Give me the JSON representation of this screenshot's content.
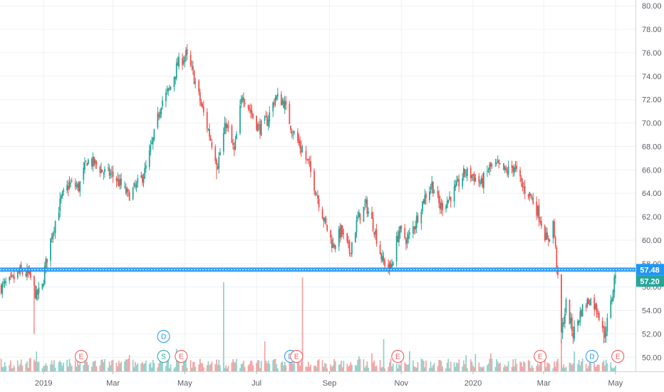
{
  "chart_data": {
    "type": "candlestick",
    "symbol_scale": "linear",
    "grid": true,
    "colors": {
      "up": "#26a69a",
      "down": "#ef5350",
      "volume_up": "#93d3cc",
      "volume_down": "#f3a6a5",
      "horizontal_line": "#2196f3",
      "last_price_label": "#26a69a",
      "line_price_label": "#2196f3",
      "grid": "#eef0f3"
    },
    "y_axis": {
      "min": 48.8,
      "max": 80.5,
      "tick_labels": [
        "50.00",
        "52.00",
        "54.00",
        "56.00",
        "58.00",
        "60.00",
        "62.00",
        "64.00",
        "66.00",
        "68.00",
        "70.00",
        "72.00",
        "74.00",
        "76.00",
        "78.00",
        "80.00"
      ]
    },
    "x_axis": {
      "start": "2018-11-25",
      "end": "2020-05-18",
      "tick_labels": [
        {
          "label": "2019",
          "date": "2019-01-01"
        },
        {
          "label": "Mar",
          "date": "2019-03-01"
        },
        {
          "label": "May",
          "date": "2019-05-01"
        },
        {
          "label": "Jul",
          "date": "2019-07-01"
        },
        {
          "label": "Sep",
          "date": "2019-09-01"
        },
        {
          "label": "Nov",
          "date": "2019-11-01"
        },
        {
          "label": "2020",
          "date": "2020-01-01"
        },
        {
          "label": "Mar",
          "date": "2020-03-01"
        },
        {
          "label": "May",
          "date": "2020-05-01"
        }
      ]
    },
    "price_path": [
      [
        "2018-11-26",
        56.0
      ],
      [
        "2018-12-05",
        56.5
      ],
      [
        "2018-12-12",
        57.3
      ],
      [
        "2018-12-20",
        57.0
      ],
      [
        "2018-12-26",
        55.2
      ],
      [
        "2018-12-31",
        56.0
      ],
      [
        "2019-01-02",
        57.5
      ],
      [
        "2019-01-08",
        60.5
      ],
      [
        "2019-01-16",
        63.5
      ],
      [
        "2019-01-23",
        64.8
      ],
      [
        "2019-01-31",
        64.5
      ],
      [
        "2019-02-07",
        66.8
      ],
      [
        "2019-02-14",
        66.5
      ],
      [
        "2019-02-21",
        65.8
      ],
      [
        "2019-02-28",
        65.6
      ],
      [
        "2019-03-07",
        64.8
      ],
      [
        "2019-03-14",
        63.8
      ],
      [
        "2019-03-21",
        64.6
      ],
      [
        "2019-03-28",
        65.8
      ],
      [
        "2019-04-04",
        68.5
      ],
      [
        "2019-04-11",
        71.8
      ],
      [
        "2019-04-18",
        72.8
      ],
      [
        "2019-04-25",
        75.0
      ],
      [
        "2019-05-02",
        75.8
      ],
      [
        "2019-05-08",
        74.2
      ],
      [
        "2019-05-15",
        71.5
      ],
      [
        "2019-05-22",
        69.0
      ],
      [
        "2019-05-29",
        66.5
      ],
      [
        "2019-06-05",
        70.0
      ],
      [
        "2019-06-12",
        67.5
      ],
      [
        "2019-06-19",
        72.5
      ],
      [
        "2019-06-26",
        71.0
      ],
      [
        "2019-07-03",
        69.5
      ],
      [
        "2019-07-10",
        70.2
      ],
      [
        "2019-07-17",
        72.2
      ],
      [
        "2019-07-24",
        71.8
      ],
      [
        "2019-07-31",
        69.5
      ],
      [
        "2019-08-07",
        68.0
      ],
      [
        "2019-08-14",
        66.5
      ],
      [
        "2019-08-21",
        64.0
      ],
      [
        "2019-08-28",
        61.5
      ],
      [
        "2019-09-04",
        59.5
      ],
      [
        "2019-09-11",
        60.8
      ],
      [
        "2019-09-18",
        59.0
      ],
      [
        "2019-09-25",
        61.8
      ],
      [
        "2019-10-02",
        63.0
      ],
      [
        "2019-10-09",
        61.0
      ],
      [
        "2019-10-16",
        58.2
      ],
      [
        "2019-10-23",
        57.6
      ],
      [
        "2019-10-30",
        60.8
      ],
      [
        "2019-11-06",
        60.0
      ],
      [
        "2019-11-13",
        61.5
      ],
      [
        "2019-11-20",
        63.5
      ],
      [
        "2019-11-27",
        64.8
      ],
      [
        "2019-12-04",
        62.8
      ],
      [
        "2019-12-11",
        63.5
      ],
      [
        "2019-12-18",
        64.5
      ],
      [
        "2019-12-25",
        65.8
      ],
      [
        "2020-01-01",
        65.5
      ],
      [
        "2020-01-08",
        64.8
      ],
      [
        "2020-01-15",
        66.2
      ],
      [
        "2020-01-22",
        66.3
      ],
      [
        "2020-01-29",
        65.8
      ],
      [
        "2020-02-05",
        66.3
      ],
      [
        "2020-02-12",
        64.5
      ],
      [
        "2020-02-19",
        63.8
      ],
      [
        "2020-02-26",
        62.2
      ],
      [
        "2020-03-04",
        59.8
      ],
      [
        "2020-03-09",
        61.5
      ],
      [
        "2020-03-12",
        58.0
      ],
      [
        "2020-03-16",
        52.0
      ],
      [
        "2020-03-20",
        54.5
      ],
      [
        "2020-03-26",
        52.0
      ],
      [
        "2020-04-02",
        54.0
      ],
      [
        "2020-04-09",
        55.0
      ],
      [
        "2020-04-16",
        54.0
      ],
      [
        "2020-04-22",
        52.0
      ],
      [
        "2020-04-27",
        54.5
      ],
      [
        "2020-05-01",
        57.3
      ]
    ],
    "horizontal_line": {
      "value": 57.48,
      "label": "57.48"
    },
    "last_price": {
      "value": 57.2,
      "label": "57.20"
    },
    "event_markers": [
      {
        "type": "E",
        "date": "2019-02-02",
        "color": "#ef5350"
      },
      {
        "type": "S",
        "date": "2019-04-13",
        "color": "#26a69a"
      },
      {
        "type": "D",
        "date": "2019-04-13",
        "color": "#2196f3",
        "row": 2
      },
      {
        "type": "E",
        "date": "2019-04-28",
        "color": "#ef5350"
      },
      {
        "type": "D",
        "date": "2019-07-30",
        "color": "#2196f3"
      },
      {
        "type": "E",
        "date": "2019-08-04",
        "color": "#ef5350"
      },
      {
        "type": "E",
        "date": "2019-10-29",
        "color": "#ef5350"
      },
      {
        "type": "E",
        "date": "2020-02-27",
        "color": "#ef5350"
      },
      {
        "type": "D",
        "date": "2020-04-11",
        "color": "#2196f3"
      },
      {
        "type": "E",
        "date": "2020-05-03",
        "color": "#ef5350"
      }
    ]
  }
}
